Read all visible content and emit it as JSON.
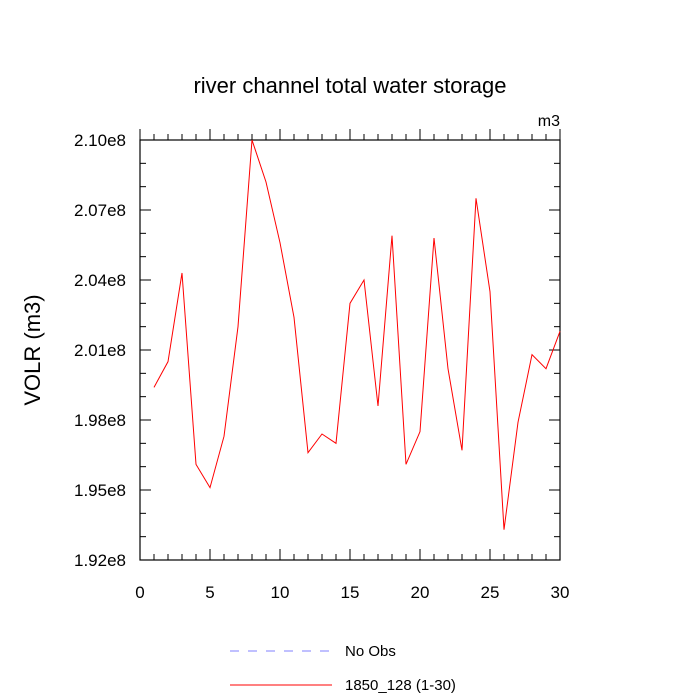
{
  "chart_data": {
    "type": "line",
    "title": "river channel total water storage",
    "units": "m3",
    "ylabel": "VOLR  (m3)",
    "xlabel": "",
    "xlim": [
      0,
      30
    ],
    "ylim": [
      192000000.0,
      210000000.0
    ],
    "x_ticks": [
      0,
      5,
      10,
      15,
      20,
      25,
      30
    ],
    "x_tick_labels": [
      "0",
      "5",
      "10",
      "15",
      "20",
      "25",
      "30"
    ],
    "y_ticks": [
      192000000.0,
      195000000.0,
      198000000.0,
      201000000.0,
      204000000.0,
      207000000.0,
      210000000.0
    ],
    "y_tick_labels": [
      "1.92e8",
      "1.95e8",
      "1.98e8",
      "2.01e8",
      "2.04e8",
      "2.07e8",
      "2.10e8"
    ],
    "grid": false,
    "legend_position": "bottom",
    "series": [
      {
        "name": "No Obs",
        "color": "#8080ff",
        "dash": "dashed",
        "x": [],
        "values": []
      },
      {
        "name": "1850_128 (1-30)",
        "color": "#ff0000",
        "dash": "solid",
        "x": [
          1,
          2,
          3,
          4,
          5,
          6,
          7,
          8,
          9,
          10,
          11,
          12,
          13,
          14,
          15,
          16,
          17,
          18,
          19,
          20,
          21,
          22,
          23,
          24,
          25,
          26,
          27,
          28,
          29,
          30
        ],
        "values": [
          199400000.0,
          200500000.0,
          204300000.0,
          196100000.0,
          195100000.0,
          197300000.0,
          202000000.0,
          210000000.0,
          208200000.0,
          205600000.0,
          202400000.0,
          196600000.0,
          197400000.0,
          197000000.0,
          203000000.0,
          204000000.0,
          198600000.0,
          205900000.0,
          196100000.0,
          197500000.0,
          205800000.0,
          200200000.0,
          196700000.0,
          207500000.0,
          203500000.0,
          193300000.0,
          197900000.0,
          200800000.0,
          200200000.0,
          201800000.0
        ]
      }
    ]
  }
}
